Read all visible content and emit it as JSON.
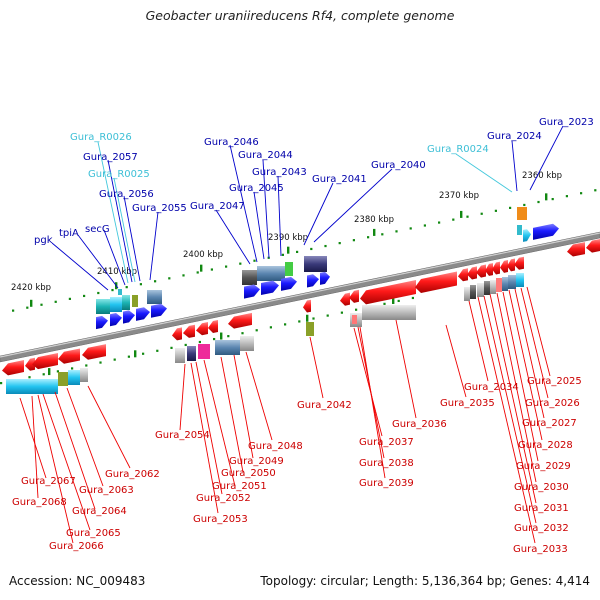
{
  "title": "Geobacter uraniireducens Rf4, complete genome",
  "footer": {
    "accession": "Accession: NC_009483",
    "topology": "Topology: circular; Length: 5,136,364 bp; Genes: 4,414"
  },
  "ruler_labels": [
    "2420 kbp",
    "2410 kbp",
    "2400 kbp",
    "2390 kbp",
    "2380 kbp",
    "2370 kbp",
    "2360 kbp"
  ],
  "upper_labels": {
    "blue": [
      "pgk",
      "tpiA",
      "secG",
      "Gura_2057",
      "Gura_2056",
      "Gura_2055",
      "Gura_2046",
      "Gura_2044",
      "Gura_2043",
      "Gura_2045",
      "Gura_2047",
      "Gura_2041",
      "Gura_2040",
      "Gura_2024",
      "Gura_2023"
    ],
    "cyan": [
      "Gura_R0026",
      "Gura_R0025",
      "Gura_R0024"
    ]
  },
  "lower_labels": [
    "Gura_2067",
    "Gura_2068",
    "Gura_2063",
    "Gura_2064",
    "Gura_2065",
    "Gura_2066",
    "Gura_2062",
    "Gura_2054",
    "Gura_2048",
    "Gura_2049",
    "Gura_2050",
    "Gura_2051",
    "Gura_2052",
    "Gura_2053",
    "Gura_2042",
    "Gura_2037",
    "Gura_2038",
    "Gura_2039",
    "Gura_2036",
    "Gura_2034",
    "Gura_2035",
    "Gura_2025",
    "Gura_2026",
    "Gura_2027",
    "Gura_2028",
    "Gura_2029",
    "Gura_2030",
    "Gura_2031",
    "Gura_2032",
    "Gura_2033"
  ],
  "colors": {
    "forward_strand": "#0000ee",
    "reverse_strand": "#ee0000",
    "rna": "#33bbcc",
    "backbone": "#808080",
    "ruler_dots": "#118811"
  }
}
